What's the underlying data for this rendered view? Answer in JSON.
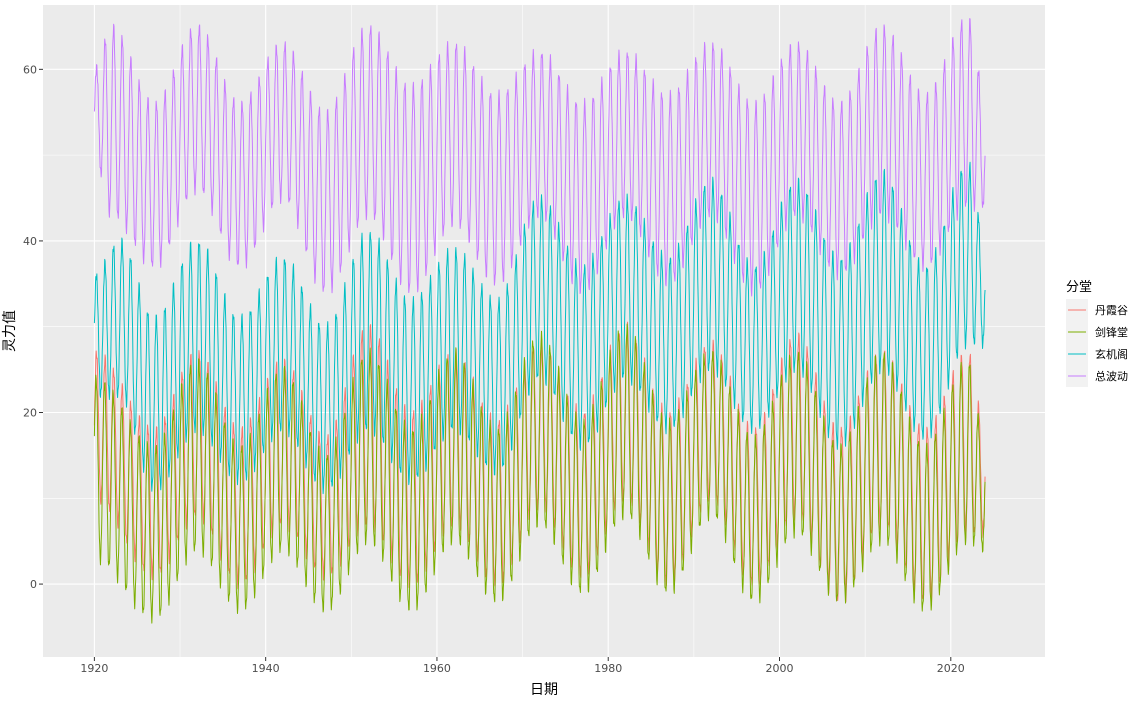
{
  "chart_data": {
    "type": "line",
    "xlabel": "日期",
    "ylabel": "灵力值",
    "xlim": [
      1914,
      2031
    ],
    "ylim": [
      -8.5,
      67.5
    ],
    "x_ticks": [
      1920,
      1940,
      1960,
      1980,
      2000,
      2020
    ],
    "x_tick_labels": [
      "1920",
      "1940",
      "1960",
      "1980",
      "2000",
      "2020"
    ],
    "y_ticks": [
      0,
      20,
      40,
      60
    ],
    "y_tick_labels": [
      "0",
      "20",
      "40",
      "60"
    ],
    "x_range_data": [
      1920,
      2024
    ],
    "grid": true,
    "panel_background": "#EBEBEB",
    "legend": {
      "title": "分堂",
      "position": "right",
      "entries": [
        {
          "name": "丹霞谷",
          "color": "#F8766D"
        },
        {
          "name": "剑锋堂",
          "color": "#7CAE00"
        },
        {
          "name": "玄机阁",
          "color": "#00BFC4"
        },
        {
          "name": "总波动",
          "color": "#C77CFF"
        }
      ]
    },
    "series": [
      {
        "name": "丹霞谷",
        "color": "#F8766D",
        "annual_cycle_range": [
          6,
          26
        ],
        "envelope_keypoints": [
          [
            1920,
            10,
            27
          ],
          [
            1927,
            1,
            18
          ],
          [
            1932,
            8,
            27
          ],
          [
            1937,
            0,
            18
          ],
          [
            1942,
            7,
            26
          ],
          [
            1947,
            1,
            17
          ],
          [
            1952,
            7,
            30
          ],
          [
            1957,
            0,
            20
          ],
          [
            1962,
            7,
            27
          ],
          [
            1967,
            0,
            19
          ],
          [
            1972,
            9,
            28
          ],
          [
            1977,
            1,
            20
          ],
          [
            1982,
            10,
            30
          ],
          [
            1987,
            0,
            20
          ],
          [
            1992,
            10,
            28
          ],
          [
            1997,
            0,
            18
          ],
          [
            2002,
            8,
            29
          ],
          [
            2007,
            -2,
            18
          ],
          [
            2012,
            7,
            27
          ],
          [
            2017,
            -2,
            18
          ],
          [
            2022,
            6,
            27
          ],
          [
            2024,
            6,
            18
          ]
        ]
      },
      {
        "name": "剑锋堂",
        "color": "#7CAE00",
        "annual_cycle_range": [
          3,
          24
        ],
        "envelope_keypoints": [
          [
            1920,
            3,
            24
          ],
          [
            1927,
            -4,
            16
          ],
          [
            1932,
            4,
            26
          ],
          [
            1937,
            -3,
            16
          ],
          [
            1942,
            4,
            25
          ],
          [
            1947,
            -3,
            15
          ],
          [
            1952,
            5,
            27
          ],
          [
            1957,
            -3,
            18
          ],
          [
            1962,
            5,
            27
          ],
          [
            1967,
            -2,
            18
          ],
          [
            1972,
            7,
            29
          ],
          [
            1977,
            -1,
            19
          ],
          [
            1982,
            8,
            30
          ],
          [
            1987,
            -1,
            19
          ],
          [
            1992,
            8,
            27
          ],
          [
            1997,
            -2,
            17
          ],
          [
            2002,
            6,
            27
          ],
          [
            2007,
            -2,
            16
          ],
          [
            2012,
            5,
            27
          ],
          [
            2017,
            -3,
            16
          ],
          [
            2022,
            5,
            26
          ],
          [
            2024,
            4,
            16
          ]
        ]
      },
      {
        "name": "玄机阁",
        "color": "#00BFC4",
        "annual_cycle_range": [
          15,
          40
        ],
        "envelope_keypoints": [
          [
            1920,
            22,
            36
          ],
          [
            1923,
            22,
            40
          ],
          [
            1927,
            11,
            31
          ],
          [
            1932,
            18,
            40
          ],
          [
            1937,
            12,
            31
          ],
          [
            1942,
            18,
            38
          ],
          [
            1947,
            11,
            30
          ],
          [
            1952,
            18,
            41
          ],
          [
            1957,
            12,
            33
          ],
          [
            1962,
            18,
            39
          ],
          [
            1967,
            13,
            33
          ],
          [
            1972,
            24,
            45
          ],
          [
            1977,
            16,
            37
          ],
          [
            1982,
            24,
            45
          ],
          [
            1987,
            18,
            38
          ],
          [
            1992,
            25,
            47
          ],
          [
            1997,
            18,
            37
          ],
          [
            2002,
            25,
            47
          ],
          [
            2007,
            16,
            38
          ],
          [
            2012,
            25,
            48
          ],
          [
            2017,
            17,
            37
          ],
          [
            2022,
            28,
            49
          ],
          [
            2024,
            28,
            40
          ]
        ]
      },
      {
        "name": "总波动",
        "color": "#C77CFF",
        "annual_cycle_range": [
          43,
          62
        ],
        "envelope_keypoints": [
          [
            1920,
            50,
            60
          ],
          [
            1922,
            43,
            65
          ],
          [
            1927,
            37,
            56
          ],
          [
            1932,
            46,
            65
          ],
          [
            1937,
            37,
            56
          ],
          [
            1942,
            45,
            63
          ],
          [
            1947,
            34,
            55
          ],
          [
            1952,
            43,
            65
          ],
          [
            1957,
            34,
            58
          ],
          [
            1962,
            42,
            63
          ],
          [
            1967,
            35,
            57
          ],
          [
            1972,
            43,
            62
          ],
          [
            1977,
            34,
            56
          ],
          [
            1982,
            43,
            62
          ],
          [
            1987,
            35,
            57
          ],
          [
            1992,
            43,
            63
          ],
          [
            1997,
            34,
            56
          ],
          [
            2002,
            43,
            63
          ],
          [
            2007,
            36,
            56
          ],
          [
            2012,
            43,
            65
          ],
          [
            2017,
            37,
            57
          ],
          [
            2022,
            44,
            66
          ],
          [
            2024,
            44,
            57
          ]
        ]
      }
    ]
  }
}
